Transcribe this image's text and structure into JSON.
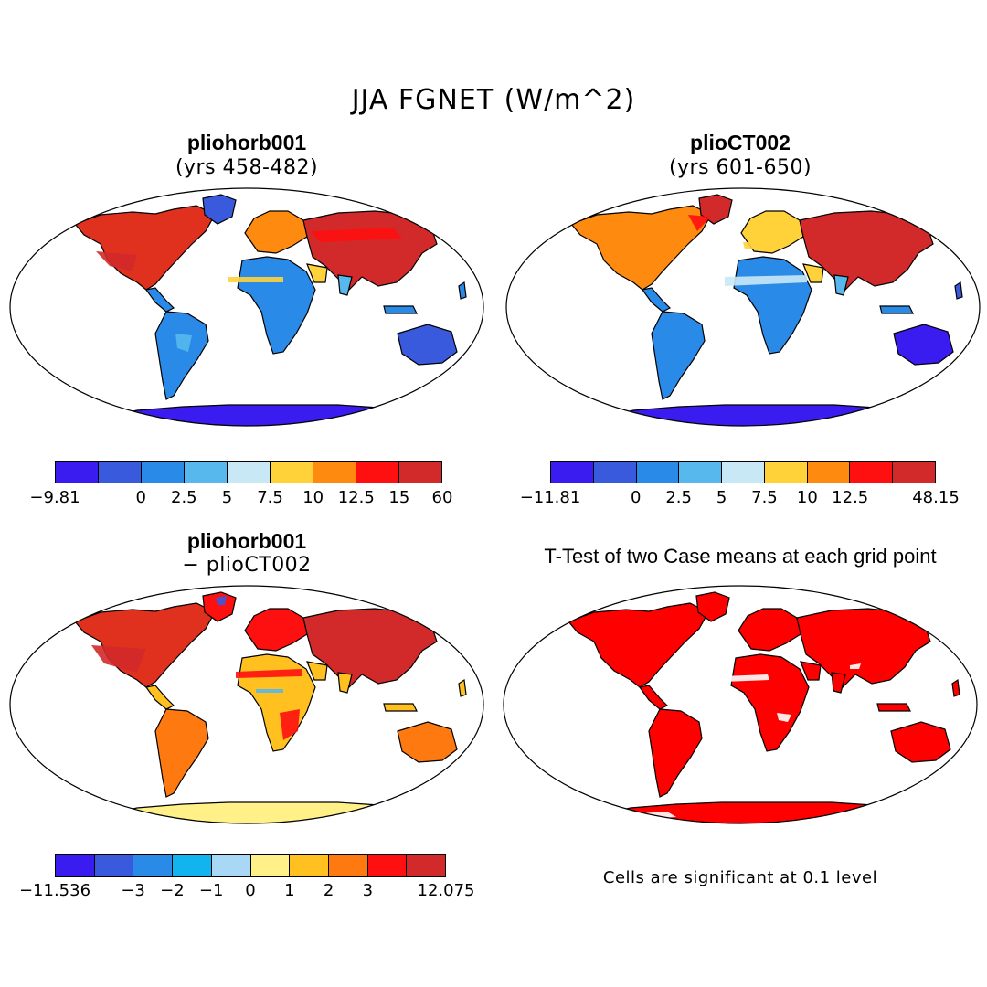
{
  "figure": {
    "main_title": "JJA FGNET (W/m^2)",
    "footnote": "Cells are significant at 0.1 level"
  },
  "colors": {
    "ocean": "#ffffff",
    "outline": "#000000",
    "significant": "#ff0000"
  },
  "chart_data": [
    {
      "type": "heatmap",
      "title": "pliohorb001",
      "subtitle": "(yrs 458-482)",
      "projection": "robinson",
      "colorbar": {
        "tick_labels": [
          "-9.81",
          "",
          "0",
          "2.5",
          "5",
          "7.5",
          "10",
          "12.5",
          "15",
          "60"
        ],
        "colors": [
          "#3a1cf0",
          "#3a5ade",
          "#2a8ae8",
          "#56b8ec",
          "#c8e8f6",
          "#ffd23a",
          "#fe8a10",
          "#fe1010",
          "#d22a2a"
        ]
      }
    },
    {
      "type": "heatmap",
      "title": "plioCT002",
      "subtitle": "(yrs 601-650)",
      "projection": "robinson",
      "colorbar": {
        "tick_labels": [
          "-11.81",
          "",
          "0",
          "2.5",
          "5",
          "7.5",
          "10",
          "12.5",
          "",
          "48.15"
        ],
        "colors": [
          "#3a1cf0",
          "#3a5ade",
          "#2a8ae8",
          "#56b8ec",
          "#c8e8f6",
          "#ffd23a",
          "#fe8a10",
          "#fe1010",
          "#d22a2a"
        ]
      }
    },
    {
      "type": "heatmap",
      "title": "pliohorb001",
      "subtitle": "− plioCT002",
      "projection": "robinson",
      "colorbar": {
        "tick_labels": [
          "-11.536",
          "",
          "-3",
          "-2",
          "-1",
          "0",
          "1",
          "2",
          "3",
          "",
          "12.075"
        ],
        "colors": [
          "#3a1cf0",
          "#3a5ade",
          "#2a8ae8",
          "#12b4f0",
          "#a8d8f6",
          "#fff088",
          "#ffc020",
          "#fe7a10",
          "#fe1010",
          "#d22a2a"
        ]
      }
    },
    {
      "type": "heatmap",
      "title": "T-Test of two Case means at each grid point",
      "subtitle": "",
      "projection": "robinson",
      "colorbar": null
    }
  ]
}
